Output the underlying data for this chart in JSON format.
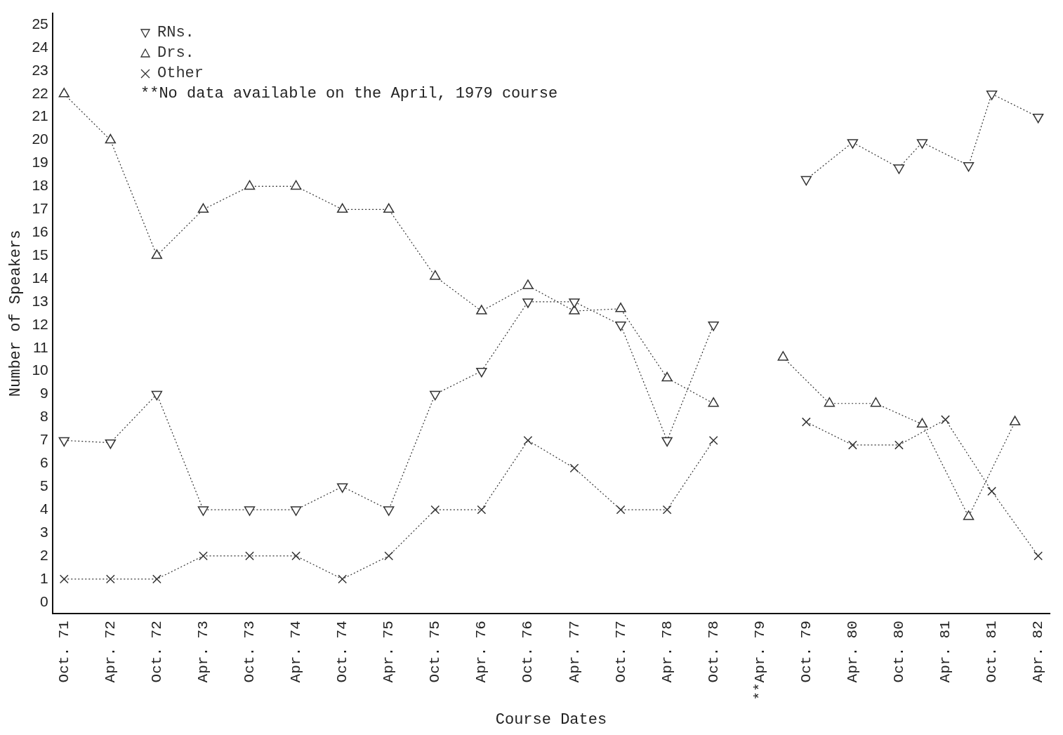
{
  "chart_data": {
    "type": "line",
    "xlabel": "Course Dates",
    "ylabel": "Number of Speakers",
    "annotations": [
      "**No data available on the April, 1979 course"
    ],
    "categories": [
      "Oct. 71",
      null,
      "Apr. 72",
      null,
      "Oct. 72",
      null,
      "Apr. 73",
      null,
      "Oct. 73",
      null,
      "Apr. 74",
      null,
      "Oct. 74",
      null,
      "Apr. 75",
      null,
      "Oct. 75",
      null,
      "Apr. 76",
      null,
      "Oct. 76",
      null,
      "Apr. 77",
      null,
      "Oct. 77",
      null,
      "Apr. 78",
      null,
      "Oct. 78",
      null,
      "**Apr. 79",
      null,
      "Oct. 79",
      null,
      "Apr. 80",
      null,
      "Oct. 80",
      null,
      "Apr. 81",
      null,
      "Oct. 81",
      null,
      "Apr. 82"
    ],
    "ylim": [
      -0.5,
      25.5
    ],
    "yticks": [
      0,
      1,
      2,
      3,
      4,
      5,
      6,
      7,
      8,
      9,
      10,
      11,
      12,
      13,
      14,
      15,
      16,
      17,
      18,
      19,
      20,
      21,
      22,
      23,
      24,
      25
    ],
    "grid": false,
    "legend": "top left",
    "line_style": "dotted",
    "series": [
      {
        "name": "RNs.",
        "color": "#333333",
        "marker": "triangle",
        "values": [
          7,
          null,
          6.9,
          null,
          9,
          null,
          4,
          null,
          4,
          null,
          4,
          null,
          5,
          null,
          4,
          null,
          9,
          null,
          10,
          null,
          13,
          null,
          13,
          null,
          12,
          null,
          7,
          null,
          12,
          null,
          null,
          null,
          18.3,
          null,
          19.9,
          null,
          18.8,
          19.9,
          null,
          18.9,
          22,
          null,
          21
        ]
      },
      {
        "name": "Drs.",
        "color": "#333333",
        "marker": "triangle",
        "values": [
          22,
          null,
          20,
          null,
          15,
          null,
          17,
          null,
          18,
          null,
          18,
          null,
          17,
          null,
          17,
          null,
          14.1,
          null,
          12.6,
          null,
          13.7,
          null,
          12.6,
          null,
          12.7,
          null,
          9.7,
          null,
          8.6,
          null,
          null,
          10.6,
          null,
          8.6,
          null,
          8.6,
          null,
          7.7,
          null,
          3.7,
          null,
          7.8,
          null
        ]
      },
      {
        "name": "Other",
        "color": "#333333",
        "marker": "cross",
        "values": [
          1,
          null,
          1,
          null,
          1,
          null,
          2,
          null,
          2,
          null,
          2,
          null,
          1,
          null,
          2,
          null,
          4,
          null,
          4,
          null,
          7,
          null,
          5.8,
          null,
          4,
          null,
          4,
          null,
          7,
          null,
          null,
          null,
          7.8,
          null,
          6.8,
          null,
          6.8,
          null,
          7.9,
          null,
          4.8,
          null,
          2
        ]
      }
    ]
  }
}
